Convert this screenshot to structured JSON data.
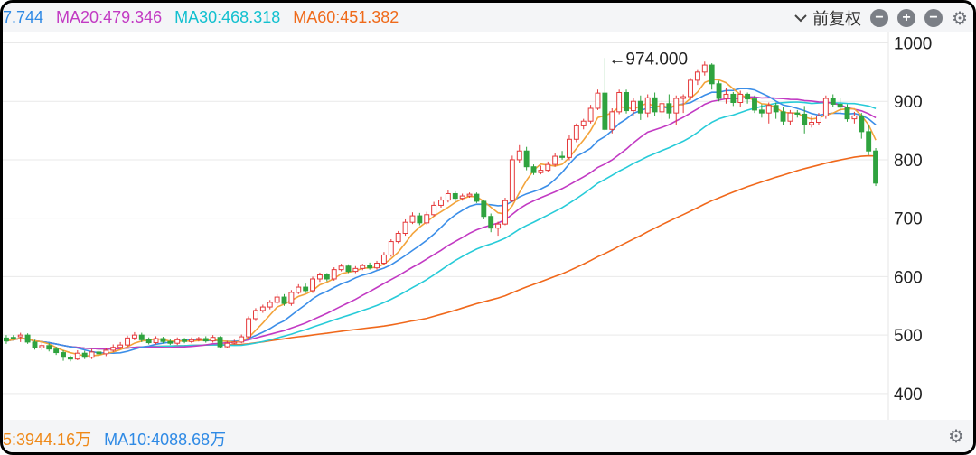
{
  "topbar": {
    "ma_items": [
      {
        "text": "7.744",
        "color": "#2f8ae5"
      },
      {
        "text": "MA20:479.346",
        "color": "#c23ac3"
      },
      {
        "text": "MA30:468.318",
        "color": "#12c0cf"
      },
      {
        "text": "MA60:451.382",
        "color": "#ef6a1a"
      }
    ],
    "adjust_label": "前复权",
    "adjust_icon": "chevron-down-icon",
    "btn_minus_1": "−",
    "btn_plus": "+",
    "btn_minus_2": "−",
    "gear": "⚙"
  },
  "bottombar": {
    "items": [
      {
        "text": "5:3944.16万",
        "color": "#ef8a1a"
      },
      {
        "text": "MA10:4088.68万",
        "color": "#2f8ae5"
      }
    ],
    "gear": "⚙"
  },
  "chart_data": {
    "type": "candlestick",
    "y_ticks": [
      "1000",
      "900",
      "800",
      "700",
      "600",
      "500",
      "400"
    ],
    "ylim": [
      355,
      1010
    ],
    "grid": true,
    "colors": {
      "up": "#e5393b",
      "down": "#2fa33f",
      "ma5": "#f3a33a",
      "ma10": "#3b8ee8",
      "ma20": "#c23ac3",
      "ma30": "#27cbd8",
      "ma60": "#f0681b"
    },
    "annotation": "←974.000",
    "annotation_value": 974,
    "candles": [
      [
        495,
        490,
        500,
        485
      ],
      [
        496,
        494,
        500,
        492
      ],
      [
        497,
        500,
        504,
        488
      ],
      [
        500,
        488,
        503,
        485
      ],
      [
        488,
        478,
        492,
        475
      ],
      [
        478,
        482,
        487,
        474
      ],
      [
        482,
        476,
        486,
        472
      ],
      [
        476,
        470,
        480,
        466
      ],
      [
        470,
        462,
        474,
        456
      ],
      [
        462,
        459,
        465,
        455
      ],
      [
        459,
        469,
        474,
        457
      ],
      [
        469,
        462,
        473,
        459
      ],
      [
        462,
        471,
        476,
        459
      ],
      [
        471,
        468,
        474,
        463
      ],
      [
        468,
        474,
        478,
        464
      ],
      [
        474,
        479,
        484,
        471
      ],
      [
        479,
        483,
        488,
        476
      ],
      [
        483,
        495,
        499,
        480
      ],
      [
        495,
        500,
        505,
        491
      ],
      [
        500,
        492,
        504,
        488
      ],
      [
        492,
        487,
        496,
        484
      ],
      [
        487,
        494,
        498,
        484
      ],
      [
        494,
        489,
        497,
        486
      ],
      [
        489,
        486,
        493,
        483
      ],
      [
        486,
        492,
        496,
        483
      ],
      [
        492,
        489,
        495,
        486
      ],
      [
        489,
        492,
        496,
        486
      ],
      [
        492,
        494,
        497,
        489
      ],
      [
        494,
        490,
        498,
        487
      ],
      [
        490,
        496,
        500,
        487
      ],
      [
        496,
        480,
        498,
        477
      ],
      [
        480,
        486,
        490,
        478
      ],
      [
        486,
        488,
        492,
        484
      ],
      [
        488,
        497,
        501,
        486
      ],
      [
        497,
        528,
        532,
        494
      ],
      [
        528,
        542,
        546,
        524
      ],
      [
        542,
        548,
        552,
        538
      ],
      [
        548,
        556,
        560,
        544
      ],
      [
        556,
        565,
        570,
        552
      ],
      [
        565,
        554,
        570,
        550
      ],
      [
        554,
        573,
        577,
        550
      ],
      [
        573,
        582,
        587,
        570
      ],
      [
        582,
        576,
        588,
        572
      ],
      [
        576,
        596,
        600,
        572
      ],
      [
        596,
        603,
        607,
        591
      ],
      [
        603,
        596,
        606,
        592
      ],
      [
        596,
        612,
        616,
        593
      ],
      [
        612,
        618,
        622,
        609
      ],
      [
        618,
        609,
        621,
        606
      ],
      [
        609,
        614,
        618,
        606
      ],
      [
        614,
        619,
        622,
        611
      ],
      [
        619,
        615,
        624,
        612
      ],
      [
        615,
        623,
        627,
        612
      ],
      [
        623,
        637,
        642,
        620
      ],
      [
        637,
        660,
        664,
        634
      ],
      [
        660,
        674,
        678,
        657
      ],
      [
        674,
        693,
        698,
        670
      ],
      [
        693,
        704,
        710,
        690
      ],
      [
        704,
        692,
        709,
        688
      ],
      [
        692,
        706,
        711,
        689
      ],
      [
        706,
        722,
        728,
        703
      ],
      [
        722,
        731,
        737,
        718
      ],
      [
        731,
        742,
        748,
        727
      ],
      [
        742,
        734,
        746,
        729
      ],
      [
        734,
        738,
        742,
        730
      ],
      [
        738,
        741,
        744,
        735
      ],
      [
        741,
        729,
        744,
        726
      ],
      [
        729,
        703,
        732,
        698
      ],
      [
        703,
        683,
        708,
        676
      ],
      [
        683,
        690,
        694,
        670
      ],
      [
        690,
        730,
        735,
        688
      ],
      [
        730,
        800,
        807,
        727
      ],
      [
        800,
        815,
        825,
        795
      ],
      [
        815,
        788,
        822,
        782
      ],
      [
        788,
        778,
        792,
        774
      ],
      [
        778,
        782,
        790,
        775
      ],
      [
        782,
        792,
        797,
        779
      ],
      [
        792,
        806,
        811,
        788
      ],
      [
        806,
        804,
        815,
        800
      ],
      [
        804,
        835,
        842,
        799
      ],
      [
        835,
        858,
        862,
        830
      ],
      [
        858,
        866,
        870,
        852
      ],
      [
        866,
        888,
        894,
        862
      ],
      [
        888,
        914,
        920,
        885
      ],
      [
        914,
        852,
        974,
        850
      ],
      [
        852,
        882,
        888,
        845
      ],
      [
        882,
        915,
        920,
        878
      ],
      [
        915,
        884,
        920,
        879
      ],
      [
        884,
        900,
        906,
        876
      ],
      [
        900,
        880,
        910,
        868
      ],
      [
        880,
        906,
        912,
        872
      ],
      [
        906,
        882,
        915,
        875
      ],
      [
        882,
        896,
        902,
        858
      ],
      [
        896,
        880,
        912,
        870
      ],
      [
        880,
        905,
        910,
        860
      ],
      [
        905,
        908,
        912,
        880
      ],
      [
        908,
        936,
        940,
        902
      ],
      [
        936,
        950,
        955,
        928
      ],
      [
        950,
        962,
        968,
        944
      ],
      [
        962,
        930,
        965,
        920
      ],
      [
        930,
        905,
        935,
        900
      ],
      [
        905,
        912,
        922,
        896
      ],
      [
        912,
        898,
        916,
        892
      ],
      [
        898,
        912,
        918,
        890
      ],
      [
        912,
        904,
        915,
        896
      ],
      [
        904,
        885,
        910,
        880
      ],
      [
        885,
        880,
        895,
        872
      ],
      [
        880,
        893,
        898,
        862
      ],
      [
        893,
        882,
        898,
        870
      ],
      [
        882,
        866,
        890,
        860
      ],
      [
        866,
        880,
        885,
        860
      ],
      [
        880,
        878,
        885,
        872
      ],
      [
        878,
        860,
        892,
        845
      ],
      [
        860,
        864,
        875,
        855
      ],
      [
        864,
        875,
        880,
        860
      ],
      [
        875,
        905,
        910,
        870
      ],
      [
        905,
        895,
        912,
        890
      ],
      [
        895,
        890,
        905,
        880
      ],
      [
        890,
        870,
        895,
        865
      ],
      [
        870,
        875,
        882,
        862
      ],
      [
        875,
        848,
        880,
        836
      ],
      [
        848,
        815,
        860,
        808
      ],
      [
        815,
        760,
        820,
        755
      ]
    ]
  }
}
